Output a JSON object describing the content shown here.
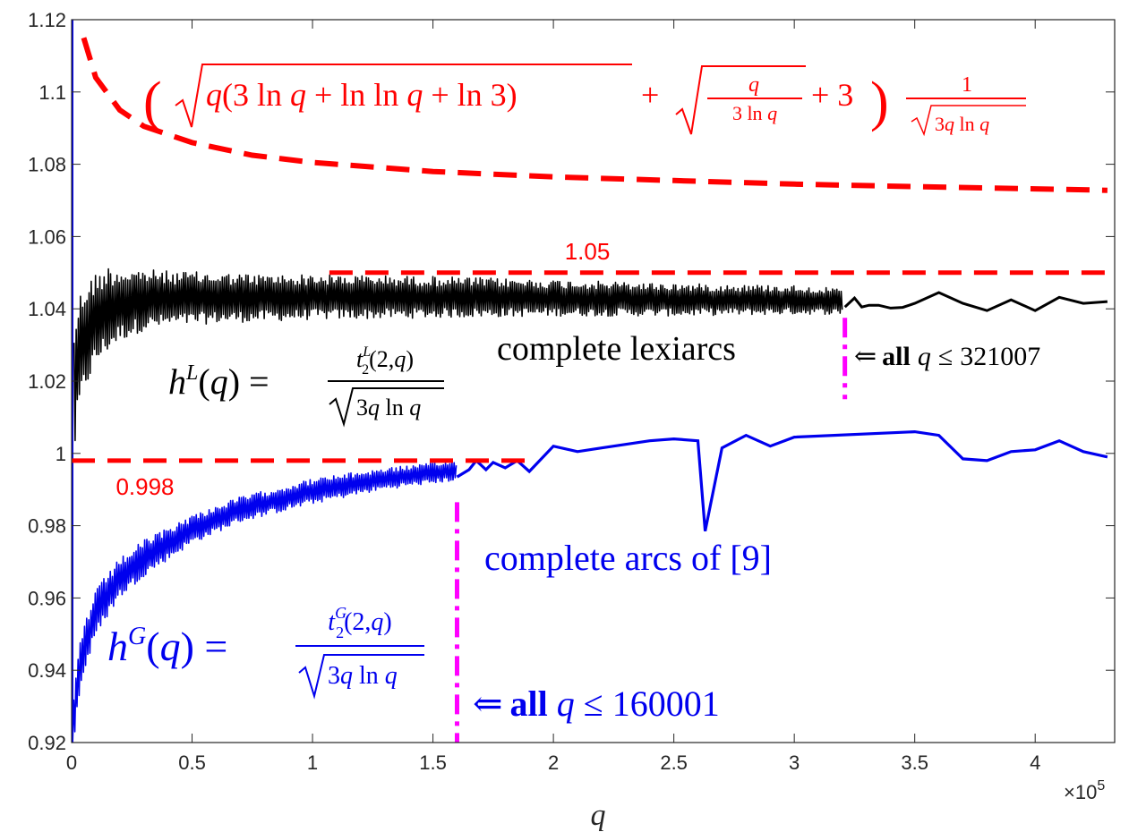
{
  "chart_data": {
    "type": "line",
    "title": "",
    "xlabel": "q",
    "ylabel": "",
    "x_exponent_label": "×10",
    "x_exponent_power": "5",
    "x_scale": 100000,
    "xlim": [
      0,
      4.33
    ],
    "ylim": [
      0.92,
      1.12
    ],
    "x_ticks": [
      0,
      0.5,
      1,
      1.5,
      2,
      2.5,
      3,
      3.5,
      4
    ],
    "x_tick_labels": [
      "0",
      "0.5",
      "1",
      "1.5",
      "2",
      "2.5",
      "3",
      "3.5",
      "4"
    ],
    "y_ticks": [
      0.92,
      0.94,
      0.96,
      0.98,
      1.0,
      1.02,
      1.04,
      1.06,
      1.08,
      1.1,
      1.12
    ],
    "y_tick_labels": [
      "0.92",
      "0.94",
      "0.96",
      "0.98",
      "1",
      "1.02",
      "1.04",
      "1.06",
      "1.08",
      "1.1",
      "1.12"
    ],
    "grid": false,
    "series": [
      {
        "key": "upper_bound",
        "color": "#ff0000",
        "style": "dashed",
        "x": [
          0.05,
          0.1,
          0.2,
          0.3,
          0.5,
          0.75,
          1.0,
          1.5,
          2.0,
          2.5,
          3.0,
          3.5,
          4.0,
          4.3
        ],
        "values": [
          1.115,
          1.104,
          1.095,
          1.0905,
          1.086,
          1.0825,
          1.0805,
          1.078,
          1.0765,
          1.0755,
          1.0745,
          1.0738,
          1.0732,
          1.0728
        ]
      },
      {
        "key": "hL",
        "color": "#000000",
        "style": "solid",
        "envelope_x": [
          0.01,
          0.03,
          0.06,
          0.1,
          0.15,
          0.2,
          0.3,
          0.4,
          0.6,
          0.8,
          1.0,
          1.5,
          2.0,
          2.5,
          3.0,
          3.2
        ],
        "envelope_upper": [
          1.037,
          1.044,
          1.048,
          1.05,
          1.052,
          1.0515,
          1.051,
          1.0505,
          1.05,
          1.0495,
          1.0495,
          1.049,
          1.048,
          1.047,
          1.0465,
          1.0455
        ],
        "envelope_lower": [
          0.998,
          1.01,
          1.018,
          1.024,
          1.028,
          1.031,
          1.034,
          1.035,
          1.036,
          1.0365,
          1.037,
          1.0375,
          1.038,
          1.038,
          1.0385,
          1.0385
        ],
        "tail_x": [
          3.21,
          3.25,
          3.28,
          3.31,
          3.35,
          3.4,
          3.45,
          3.5,
          3.6,
          3.7,
          3.8,
          3.9,
          4.0,
          4.1,
          4.2,
          4.3
        ],
        "tail_values": [
          1.0405,
          1.043,
          1.0405,
          1.041,
          1.041,
          1.0402,
          1.0404,
          1.0415,
          1.0445,
          1.0415,
          1.0395,
          1.0425,
          1.0395,
          1.0432,
          1.0415,
          1.042
        ]
      },
      {
        "key": "hG",
        "color": "#0000ee",
        "style": "solid",
        "envelope_x": [
          0.0,
          0.01,
          0.03,
          0.06,
          0.1,
          0.15,
          0.2,
          0.3,
          0.5,
          0.7,
          1.0,
          1.3,
          1.6
        ],
        "envelope_upper": [
          0.92,
          0.935,
          0.947,
          0.955,
          0.962,
          0.967,
          0.971,
          0.976,
          0.983,
          0.988,
          0.993,
          0.996,
          0.998
        ],
        "envelope_lower": [
          0.92,
          0.92,
          0.932,
          0.941,
          0.949,
          0.955,
          0.96,
          0.966,
          0.975,
          0.981,
          0.986,
          0.99,
          0.9925
        ],
        "tail_x": [
          1.6,
          1.65,
          1.68,
          1.72,
          1.75,
          1.8,
          1.85,
          1.9,
          2.0,
          2.1,
          2.2,
          2.3,
          2.4,
          2.5,
          2.6,
          2.63,
          2.7,
          2.8,
          2.9,
          3.0,
          3.5,
          3.6,
          3.7,
          3.8,
          3.9,
          4.0,
          4.1,
          4.2,
          4.3
        ],
        "tail_values": [
          0.9935,
          0.9955,
          0.998,
          0.9955,
          0.9975,
          0.996,
          0.998,
          0.995,
          1.002,
          1.0005,
          1.0015,
          1.0025,
          1.0035,
          1.004,
          1.0035,
          0.9785,
          1.0015,
          1.005,
          1.002,
          1.0045,
          1.006,
          1.005,
          0.9985,
          0.998,
          1.0005,
          1.001,
          1.0035,
          1.0005,
          0.999
        ]
      },
      {
        "key": "blue_axis_line",
        "color": "#0000ee",
        "style": "solid",
        "x": [
          0.0,
          0.0
        ],
        "values": [
          0.92,
          1.12
        ]
      }
    ],
    "reference_lines": [
      {
        "key": "ref_105",
        "label": "1.05",
        "y": 1.05,
        "x_start": 1.07,
        "x_end": 4.33,
        "color": "#ff0000"
      },
      {
        "key": "ref_0998",
        "label": "0.998",
        "y": 0.998,
        "x_start": 0.0,
        "x_end": 1.9,
        "color": "#ff0000"
      }
    ],
    "vertical_markers": [
      {
        "key": "cutoff_L",
        "x": 3.21,
        "y_from": 1.0375,
        "y_to": 1.015,
        "color": "#ff00ff"
      },
      {
        "key": "cutoff_G",
        "x": 1.6,
        "y_from": 0.9865,
        "y_to": 0.92,
        "color": "#ff00ff"
      }
    ],
    "annotations": {
      "upper_formula": "(√(q(3 ln q + ln ln q + ln 3)) + √(q/(3 ln q)) + 3) · 1/√(3q ln q)",
      "hL_formula": "h^L(q) = t_2^L(2,q) / √(3q ln q)",
      "hG_formula": "h^G(q) = t_2^G(2,q) / √(3q ln q)",
      "complete_lexiarcs": "complete lexiarcs",
      "complete_arcs": "complete arcs of [9]",
      "arrow": "⇐",
      "all_word": "all",
      "q_symbol": "q",
      "leq": "≤",
      "lexi_limit": "321007",
      "arcs_limit": "160001"
    }
  }
}
